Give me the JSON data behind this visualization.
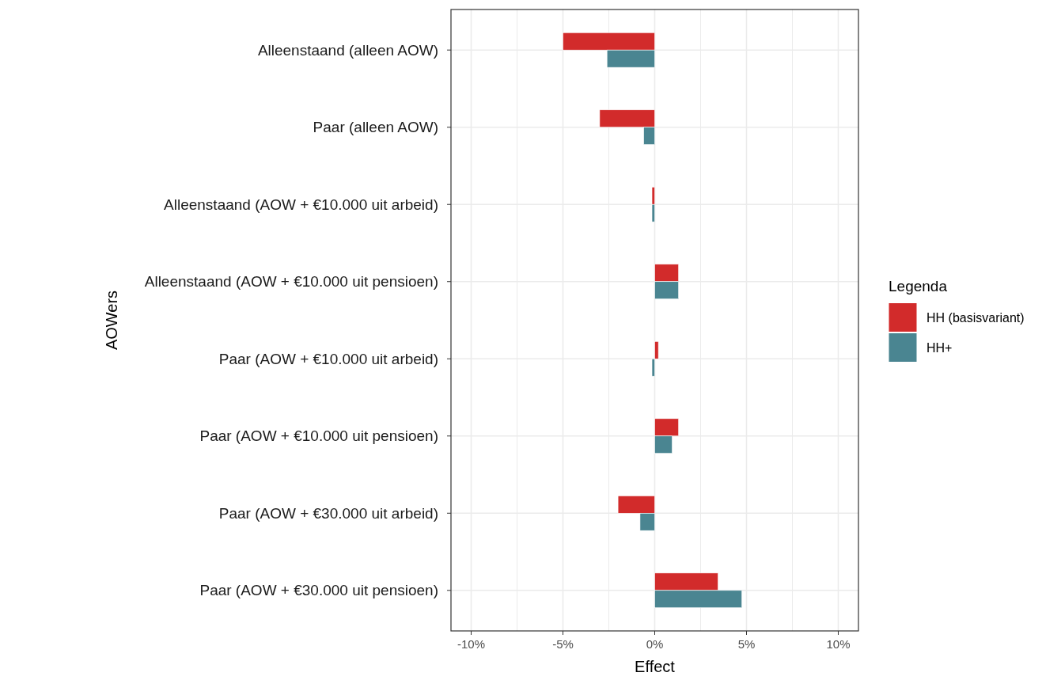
{
  "chart_data": {
    "type": "bar",
    "orientation": "horizontal",
    "xlabel": "Effect",
    "ylabel": "AOWers",
    "legend_title": "Legenda",
    "legend": "right",
    "grid": true,
    "categories": [
      "Alleenstaand (alleen AOW)",
      "Paar (alleen AOW)",
      "Alleenstaand (AOW + €10.000 uit arbeid)",
      "Alleenstaand (AOW + €10.000 uit pensioen)",
      "Paar (AOW + €10.000 uit arbeid)",
      "Paar (AOW + €10.000 uit pensioen)",
      "Paar (AOW + €30.000 uit arbeid)",
      "Paar (AOW + €30.000 uit pensioen)"
    ],
    "series": [
      {
        "name": "HH (basisvariant)",
        "color": "#d22b2b",
        "values": [
          -5.0,
          -3.0,
          -0.15,
          1.3,
          0.2,
          1.3,
          -2.0,
          3.45
        ]
      },
      {
        "name": "HH+",
        "color": "#4a8591",
        "values": [
          -2.6,
          -0.6,
          -0.15,
          1.3,
          -0.15,
          0.95,
          -0.8,
          4.75
        ]
      }
    ],
    "xlim": [
      -11.1,
      11.1
    ],
    "xticks": [
      {
        "value": -10,
        "label": "-10%"
      },
      {
        "value": -5,
        "label": "-5%"
      },
      {
        "value": 0,
        "label": "0%"
      },
      {
        "value": 5,
        "label": "5%"
      },
      {
        "value": 10,
        "label": "10%"
      }
    ]
  }
}
